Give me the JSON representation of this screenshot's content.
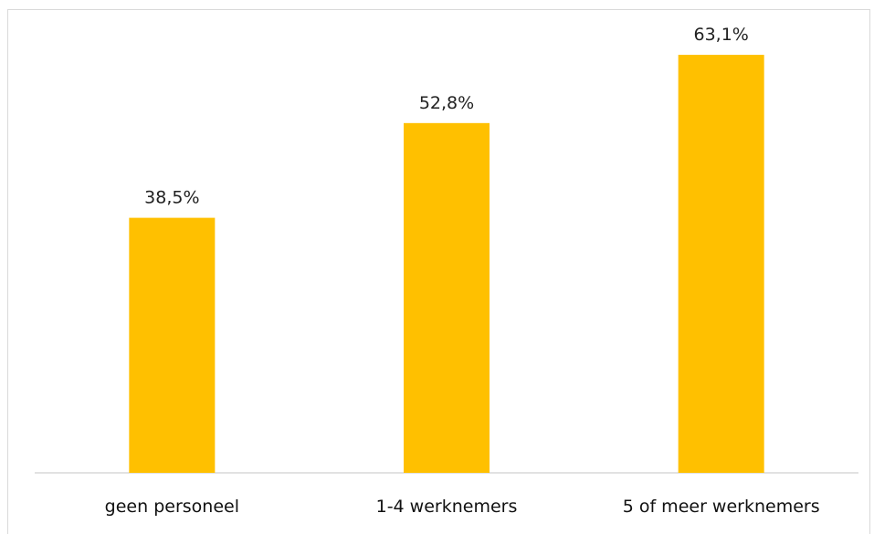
{
  "chart_data": {
    "type": "bar",
    "categories": [
      "geen personeel",
      "1-4 werknemers",
      "5 of meer werknemers"
    ],
    "values": [
      38.5,
      52.8,
      63.1
    ],
    "value_labels": [
      "38,5%",
      "52,8%",
      "63,1%"
    ],
    "title": "",
    "xlabel": "",
    "ylabel": "",
    "ylim": [
      0,
      70
    ],
    "grid": false,
    "legend": "none",
    "bar_color": "#FFC000",
    "axis_color": "#d9d9d9"
  }
}
